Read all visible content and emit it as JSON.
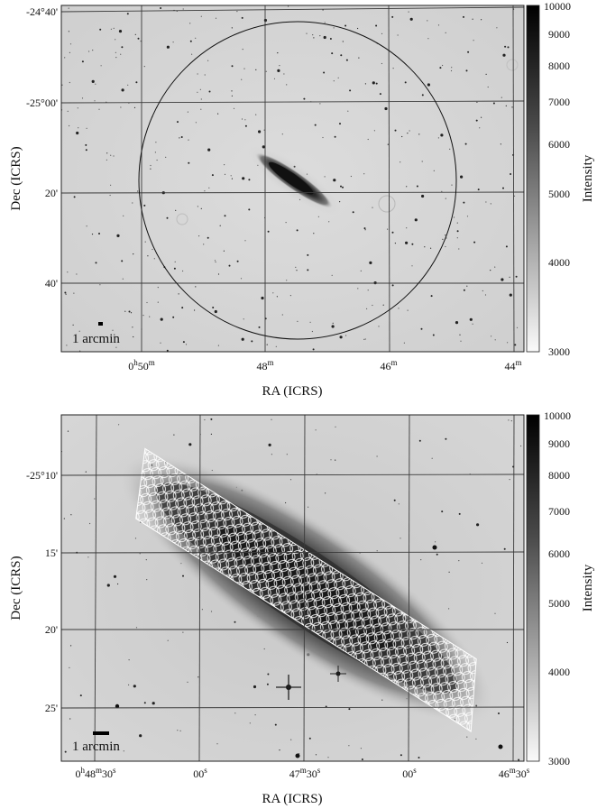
{
  "top": {
    "ylabel": "Dec (ICRS)",
    "xlabel": "RA (ICRS)",
    "colorbar_label": "Intensity",
    "scale_label": "1 arcmin",
    "y_ticks": [
      "-24°40'",
      "-25°00'",
      "20'",
      "40'"
    ],
    "x_ticks": [
      {
        "main": "0",
        "sup1": "h",
        "mid": "50",
        "sup2": "m"
      },
      {
        "main": "48",
        "sup1": "m"
      },
      {
        "main": "46",
        "sup1": "m"
      },
      {
        "main": "44",
        "sup1": "m"
      }
    ],
    "colorbar_ticks": [
      "10000",
      "9000",
      "8000",
      "7000",
      "6000",
      "5000",
      "4000",
      "3000"
    ]
  },
  "bottom": {
    "ylabel": "Dec (ICRS)",
    "xlabel": "RA (ICRS)",
    "colorbar_label": "Intensity",
    "scale_label": "1 arcmin",
    "y_ticks": [
      "-25°10'",
      "15'",
      "20'",
      "25'"
    ],
    "x_ticks": [
      {
        "main": "0",
        "sup1": "h",
        "mid": "48",
        "sup2": "m",
        "end": "30",
        "sup3": "s"
      },
      {
        "main": "00",
        "sup1": "s"
      },
      {
        "main": "47",
        "sup1": "m",
        "mid": "30",
        "sup2": "s"
      },
      {
        "main": "00",
        "sup1": "s"
      },
      {
        "main": "46",
        "sup1": "m",
        "mid": "30",
        "sup2": "s"
      }
    ],
    "colorbar_ticks": [
      "10000",
      "9000",
      "8000",
      "7000",
      "6000",
      "5000",
      "4000",
      "3000"
    ]
  },
  "colors": {
    "sky": "#d6d6d6",
    "galaxy": "#1c1c1c",
    "grid": "#3a3a3a",
    "aperture": "#ffffff"
  }
}
